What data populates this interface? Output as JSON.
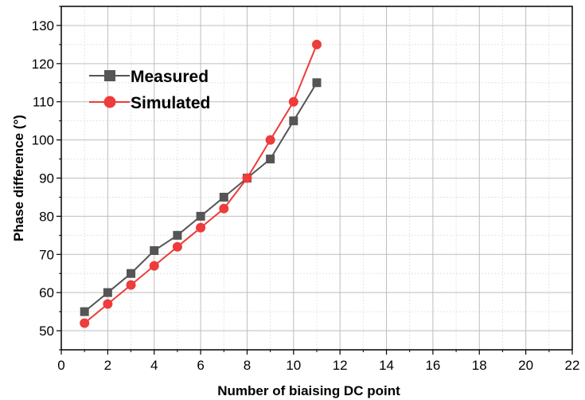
{
  "chart_data": {
    "type": "line",
    "title": "",
    "xlabel": "Number of biaising DC point",
    "ylabel": "Phase difference (°)",
    "xlim": [
      0,
      22
    ],
    "ylim": [
      45,
      135
    ],
    "xticks": [
      0,
      2,
      4,
      6,
      8,
      10,
      12,
      14,
      16,
      18,
      20,
      22
    ],
    "yticks": [
      50,
      60,
      70,
      80,
      90,
      100,
      110,
      120,
      130
    ],
    "grid": true,
    "legend_position": "top-left",
    "series": [
      {
        "name": "Measured",
        "color": "#555555",
        "marker": "square",
        "x": [
          1,
          2,
          3,
          4,
          5,
          6,
          7,
          8,
          9,
          10,
          11
        ],
        "y": [
          55,
          60,
          65,
          71,
          75,
          80,
          85,
          90,
          95,
          105,
          115
        ]
      },
      {
        "name": "Simulated",
        "color": "#ee3b3b",
        "marker": "circle",
        "x": [
          1,
          2,
          3,
          4,
          5,
          6,
          7,
          8,
          9,
          10,
          11
        ],
        "y": [
          52,
          57,
          62,
          67,
          72,
          77,
          82,
          90,
          100,
          110,
          125
        ]
      }
    ]
  }
}
